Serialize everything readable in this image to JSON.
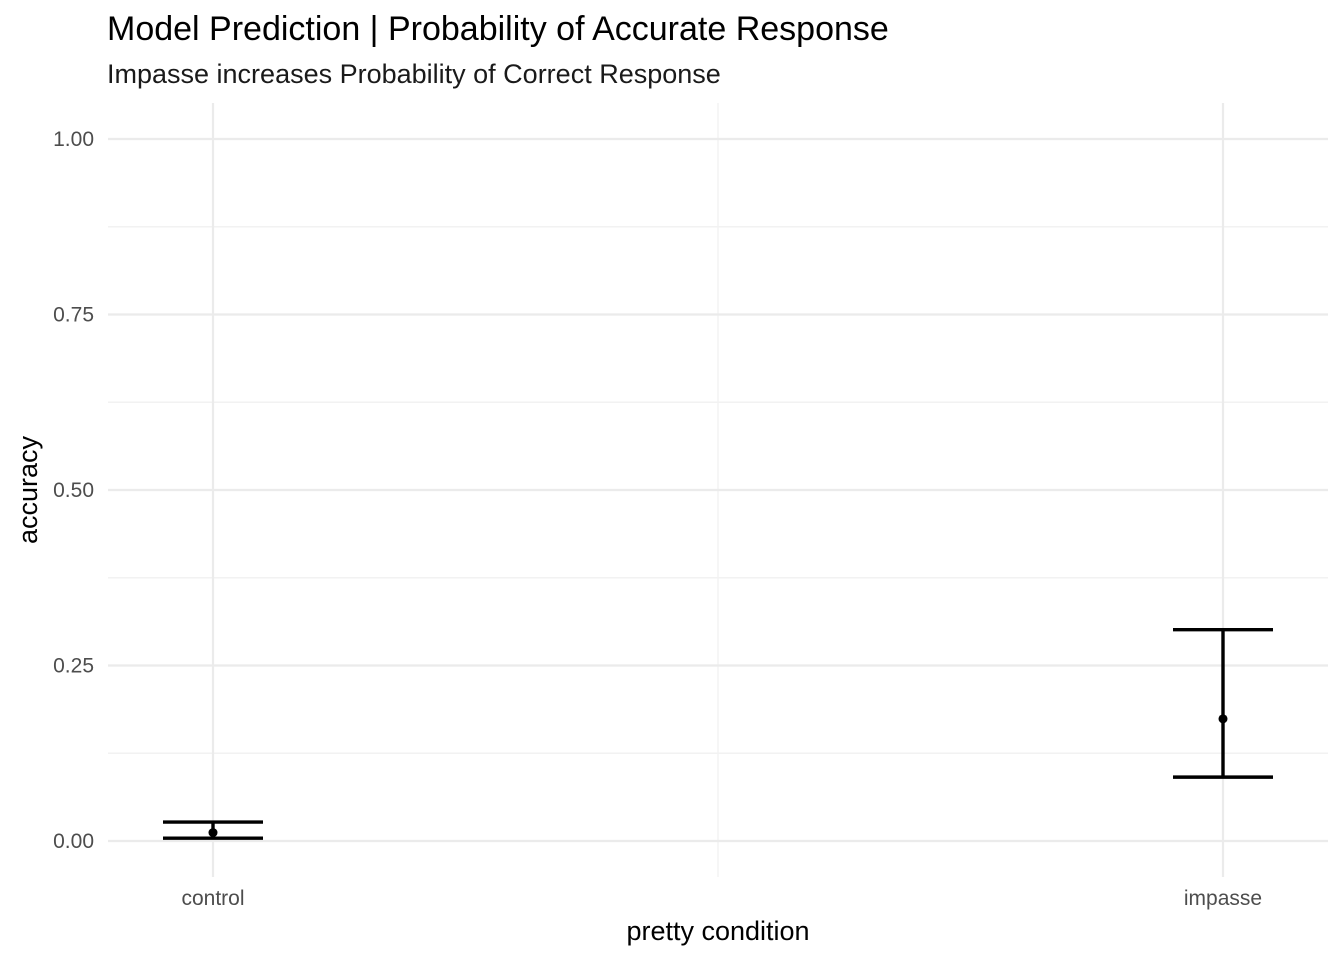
{
  "chart_data": {
    "type": "errorbar",
    "title": "Model Prediction | Probability of Accurate Response",
    "subtitle": "Impasse increases Probability of Correct Response",
    "xlabel": "pretty condition",
    "ylabel": "accuracy",
    "categories": [
      "control",
      "impasse"
    ],
    "estimates": [
      0.012,
      0.174
    ],
    "lower": [
      0.004,
      0.091
    ],
    "upper": [
      0.027,
      0.301
    ],
    "ylim": [
      -0.05,
      1.05
    ],
    "yticks": [
      0.0,
      0.25,
      0.5,
      0.75,
      1.0
    ],
    "ytick_labels": [
      "0.00",
      "0.25",
      "0.50",
      "0.75",
      "1.00"
    ],
    "grid": true,
    "legend": "none",
    "colors": {
      "marks": "#000000",
      "grid": "#ebebeb",
      "background": "#ffffff"
    }
  }
}
